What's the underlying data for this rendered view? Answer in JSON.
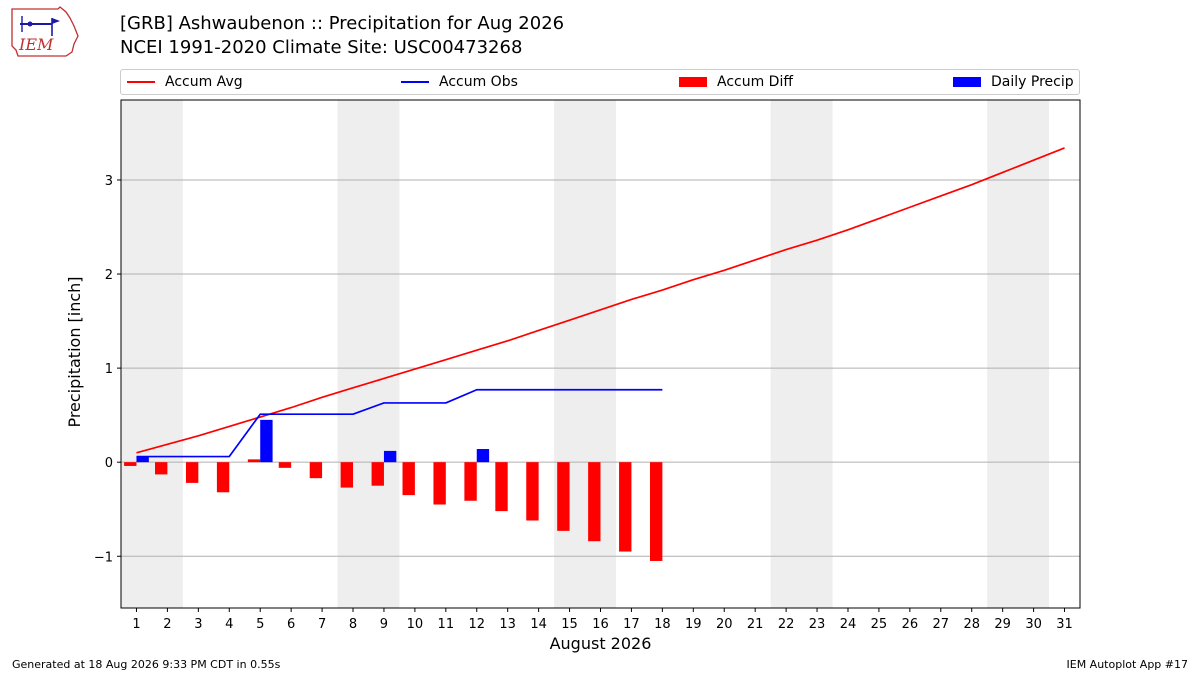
{
  "header": {
    "title_line1": "[GRB] Ashwaubenon :: Precipitation for Aug 2026",
    "title_line2": "NCEI 1991-2020 Climate Site: USC00473268"
  },
  "logo": {
    "text": "IEM",
    "icon": "iem-iowa-logo"
  },
  "footer": {
    "generated": "Generated at 18 Aug 2026 9:33 PM CDT in 0.55s",
    "app": "IEM Autoplot App #17"
  },
  "legend": {
    "accum_avg": "Accum Avg",
    "accum_obs": "Accum Obs",
    "accum_diff": "Accum Diff",
    "daily_precip": "Daily Precip"
  },
  "chart_data": {
    "type": "bar",
    "xlabel": "August 2026",
    "ylabel": "Precipitation [inch]",
    "xlim": [
      0.5,
      31.5
    ],
    "ylim": [
      -1.55,
      3.85
    ],
    "yticks": [
      -1,
      0,
      1,
      2,
      3
    ],
    "ytick_labels": [
      "−1",
      "0",
      "1",
      "2",
      "3"
    ],
    "xticks": [
      1,
      2,
      3,
      4,
      5,
      6,
      7,
      8,
      9,
      10,
      11,
      12,
      13,
      14,
      15,
      16,
      17,
      18,
      19,
      20,
      21,
      22,
      23,
      24,
      25,
      26,
      27,
      28,
      29,
      30,
      31
    ],
    "grid": "horizontal",
    "legend_position": "top",
    "weekend_shading": [
      [
        1,
        2
      ],
      [
        8,
        9
      ],
      [
        15,
        16
      ],
      [
        22,
        23
      ],
      [
        29,
        30
      ]
    ],
    "colors": {
      "accum_avg": "#ff0000",
      "accum_obs": "#0000ff",
      "accum_diff": "#ff0000",
      "daily_precip": "#0000ff",
      "shade": "#eeeeee",
      "grid": "#b0b0b0"
    },
    "series": [
      {
        "name": "Accum Avg",
        "kind": "line",
        "x": [
          1,
          2,
          3,
          4,
          5,
          6,
          7,
          8,
          9,
          10,
          11,
          12,
          13,
          14,
          15,
          16,
          17,
          18,
          19,
          20,
          21,
          22,
          23,
          24,
          25,
          26,
          27,
          28,
          29,
          30,
          31
        ],
        "values": [
          0.1,
          0.19,
          0.28,
          0.38,
          0.48,
          0.58,
          0.69,
          0.79,
          0.89,
          0.99,
          1.09,
          1.19,
          1.29,
          1.4,
          1.51,
          1.62,
          1.73,
          1.83,
          1.94,
          2.04,
          2.15,
          2.26,
          2.36,
          2.47,
          2.59,
          2.71,
          2.83,
          2.95,
          3.08,
          3.21,
          3.34
        ]
      },
      {
        "name": "Accum Obs",
        "kind": "line",
        "x": [
          1,
          2,
          3,
          4,
          5,
          6,
          7,
          8,
          9,
          10,
          11,
          12,
          13,
          14,
          15,
          16,
          17,
          18
        ],
        "values": [
          0.06,
          0.06,
          0.06,
          0.06,
          0.51,
          0.51,
          0.51,
          0.51,
          0.63,
          0.63,
          0.63,
          0.77,
          0.77,
          0.77,
          0.77,
          0.77,
          0.77,
          0.77
        ]
      },
      {
        "name": "Accum Diff",
        "kind": "bar",
        "x": [
          1,
          2,
          3,
          4,
          5,
          6,
          7,
          8,
          9,
          10,
          11,
          12,
          13,
          14,
          15,
          16,
          17,
          18
        ],
        "values": [
          -0.04,
          -0.13,
          -0.22,
          -0.32,
          0.03,
          -0.06,
          -0.17,
          -0.27,
          -0.25,
          -0.35,
          -0.45,
          -0.41,
          -0.52,
          -0.62,
          -0.73,
          -0.84,
          -0.95,
          -1.05
        ]
      },
      {
        "name": "Daily Precip",
        "kind": "bar",
        "x": [
          1,
          2,
          3,
          4,
          5,
          6,
          7,
          8,
          9,
          10,
          11,
          12,
          13,
          14,
          15,
          16,
          17,
          18
        ],
        "values": [
          0.06,
          0,
          0,
          0,
          0.45,
          0,
          0,
          0,
          0.12,
          0,
          0,
          0.14,
          0,
          0,
          0,
          0,
          0,
          0
        ]
      }
    ]
  }
}
